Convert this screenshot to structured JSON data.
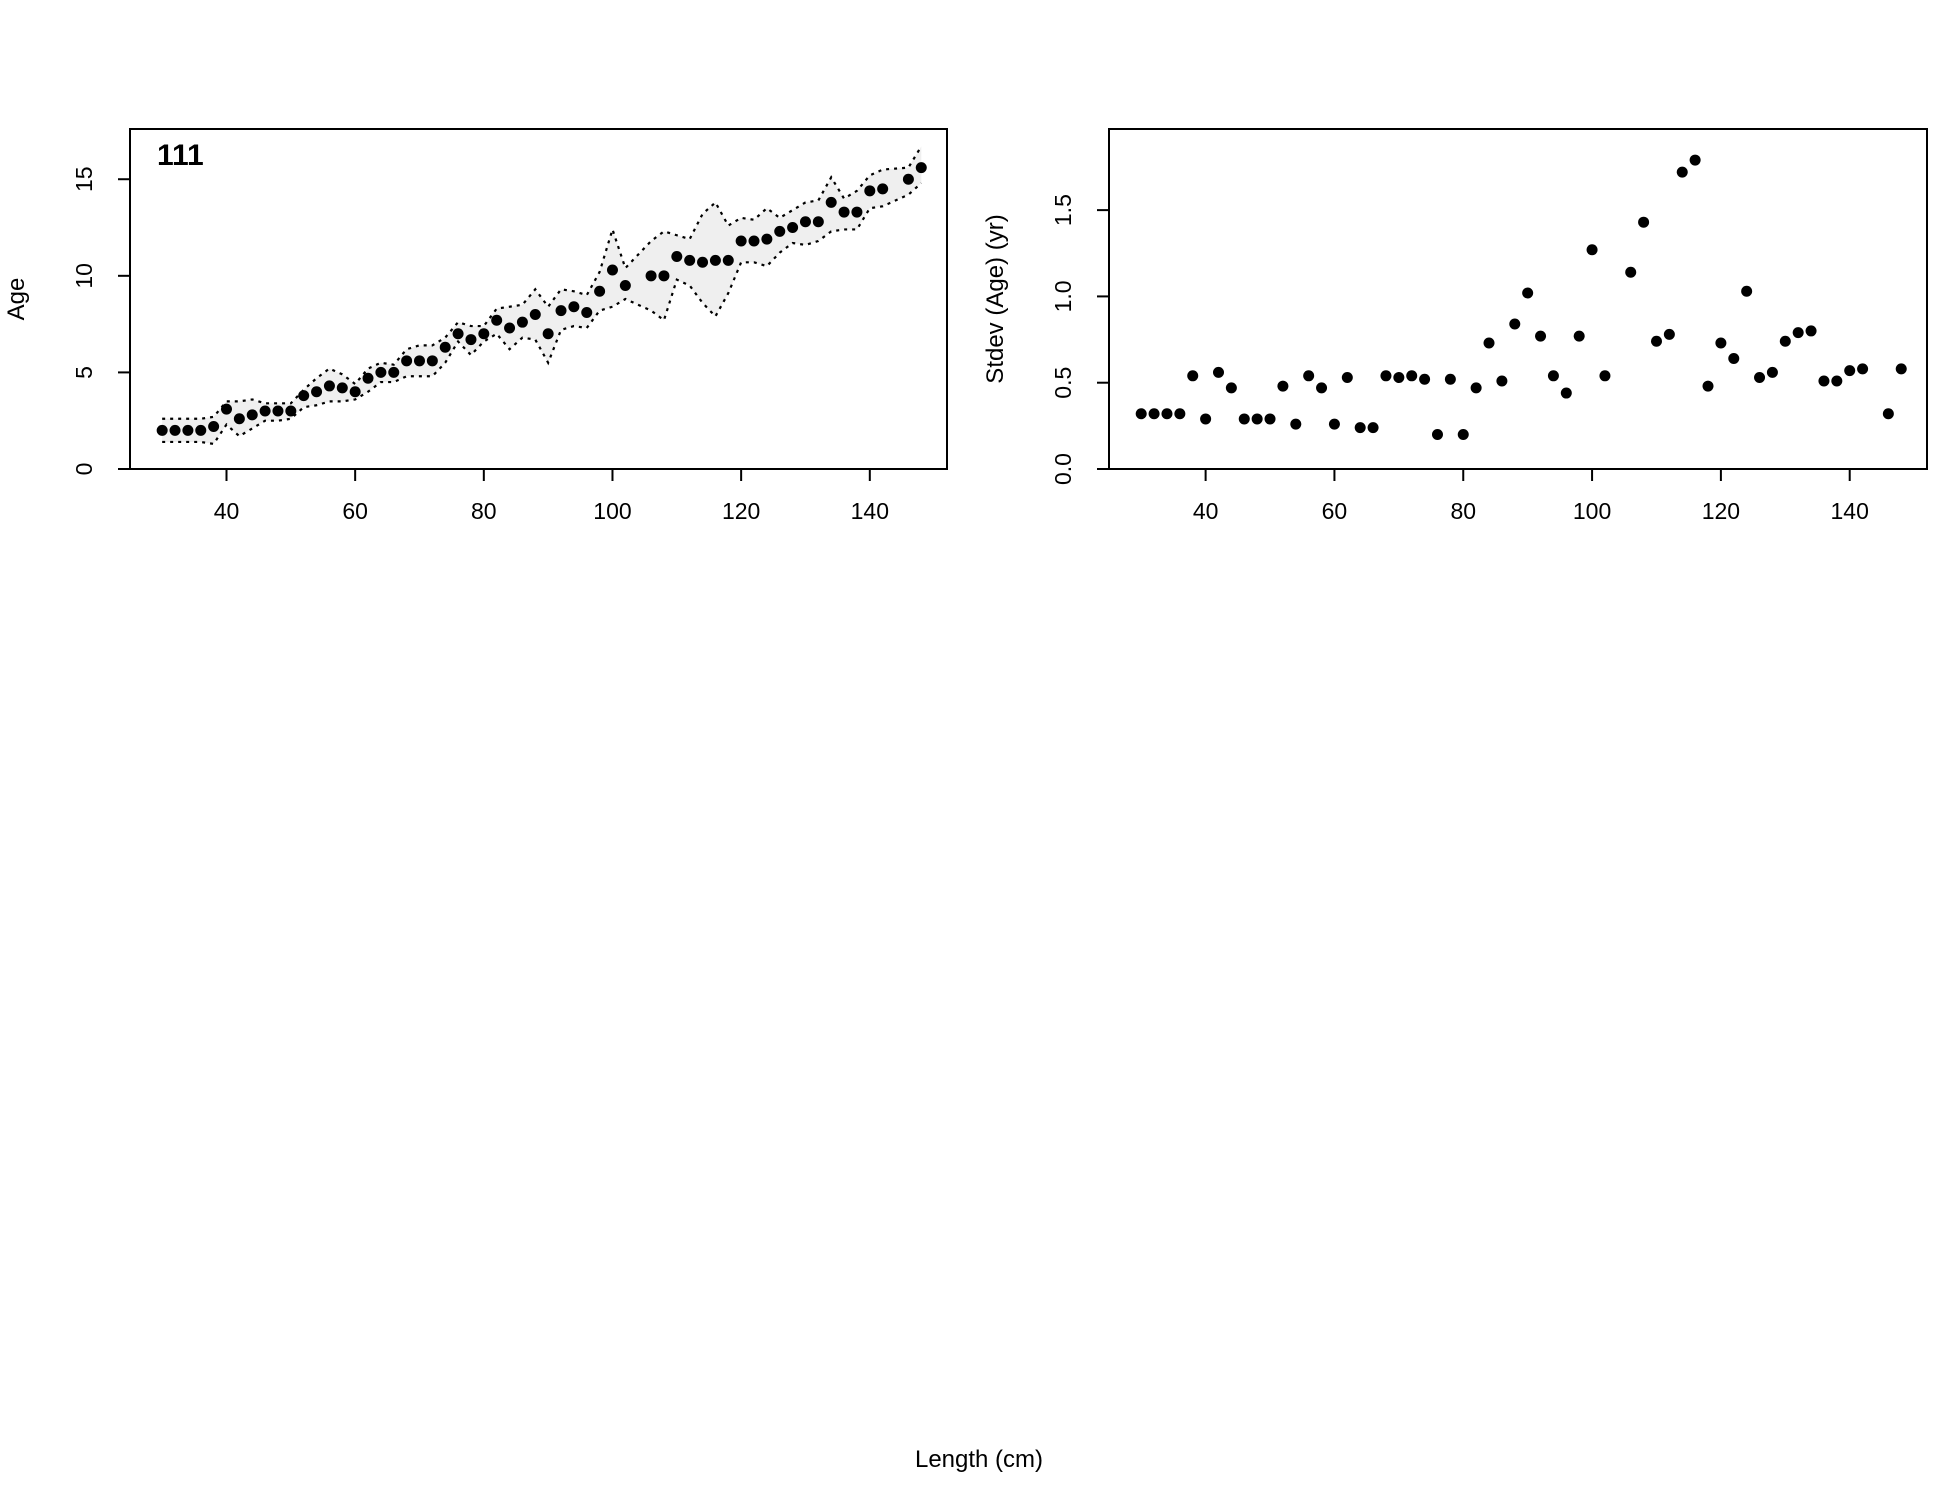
{
  "figure": {
    "xlabel": "Length (cm)"
  },
  "chart_data": [
    {
      "type": "scatter",
      "panel_label": "111",
      "xlabel": "Length (cm)",
      "ylabel": "Age",
      "xlim": [
        25,
        152
      ],
      "ylim": [
        0,
        17.6
      ],
      "xticks": [
        "40",
        "60",
        "80",
        "100",
        "120",
        "140"
      ],
      "yticks": [
        "0",
        "5",
        "10",
        "15"
      ],
      "grid": false,
      "legend": "none",
      "band": "dotted upper and lower bounds with light grey fill",
      "x": [
        30,
        32,
        34,
        36,
        38,
        40,
        42,
        44,
        46,
        48,
        50,
        52,
        54,
        56,
        58,
        60,
        62,
        64,
        66,
        68,
        70,
        72,
        74,
        76,
        78,
        80,
        82,
        84,
        86,
        88,
        90,
        92,
        94,
        96,
        98,
        100,
        102,
        106,
        108,
        110,
        112,
        114,
        116,
        118,
        120,
        122,
        124,
        126,
        128,
        130,
        132,
        134,
        136,
        138,
        140,
        142,
        146,
        148
      ],
      "y": [
        2.0,
        2.0,
        2.0,
        2.0,
        2.2,
        3.1,
        2.6,
        2.8,
        3.0,
        3.0,
        3.0,
        3.8,
        4.0,
        4.3,
        4.2,
        4.0,
        4.7,
        5.0,
        5.0,
        5.6,
        5.6,
        5.6,
        6.3,
        7.0,
        6.7,
        7.0,
        7.7,
        7.3,
        7.6,
        8.0,
        7.0,
        8.2,
        8.4,
        8.1,
        9.2,
        10.3,
        9.5,
        10.0,
        10.0,
        11.0,
        10.8,
        10.7,
        10.8,
        10.8,
        11.8,
        11.8,
        11.9,
        12.3,
        12.5,
        12.8,
        12.8,
        13.8,
        13.3,
        13.3,
        14.4,
        14.5,
        15.0,
        15.6
      ],
      "upper": [
        2.6,
        2.6,
        2.6,
        2.6,
        2.7,
        3.5,
        3.5,
        3.6,
        3.4,
        3.4,
        3.4,
        4.1,
        4.7,
        5.2,
        4.9,
        4.4,
        5.2,
        5.5,
        5.4,
        6.2,
        6.4,
        6.4,
        6.8,
        7.6,
        7.4,
        7.4,
        8.3,
        8.4,
        8.5,
        9.3,
        8.4,
        9.3,
        9.2,
        9.0,
        10.2,
        12.4,
        10.4,
        11.8,
        12.3,
        12.1,
        11.9,
        13.2,
        13.8,
        12.6,
        13.0,
        12.9,
        13.5,
        13.0,
        13.4,
        13.8,
        13.9,
        15.1,
        14.0,
        14.4,
        15.2,
        15.5,
        15.6,
        16.7
      ],
      "lower": [
        1.4,
        1.4,
        1.4,
        1.4,
        1.3,
        2.3,
        1.7,
        2.1,
        2.5,
        2.5,
        2.6,
        3.2,
        3.3,
        3.5,
        3.5,
        3.6,
        4.0,
        4.5,
        4.5,
        4.8,
        4.8,
        4.8,
        5.5,
        6.6,
        5.9,
        6.6,
        7.0,
        6.2,
        6.8,
        6.7,
        5.5,
        7.2,
        7.4,
        7.3,
        8.2,
        8.4,
        8.8,
        8.2,
        7.7,
        9.8,
        9.5,
        8.6,
        7.9,
        9.1,
        10.7,
        10.7,
        10.5,
        11.2,
        11.7,
        11.6,
        11.8,
        12.3,
        12.4,
        12.4,
        13.5,
        13.6,
        14.2,
        14.8
      ]
    },
    {
      "type": "scatter",
      "xlabel": "Length (cm)",
      "ylabel": "Stdev (Age) (yr)",
      "xlim": [
        25,
        152
      ],
      "ylim": [
        0,
        1.97
      ],
      "xticks": [
        "40",
        "60",
        "80",
        "100",
        "120",
        "140"
      ],
      "yticks": [
        "0.0",
        "0.5",
        "1.0",
        "1.5"
      ],
      "grid": false,
      "legend": "none",
      "x": [
        30,
        32,
        34,
        36,
        38,
        40,
        42,
        44,
        46,
        48,
        50,
        52,
        54,
        56,
        58,
        60,
        62,
        64,
        66,
        68,
        70,
        72,
        74,
        76,
        78,
        80,
        82,
        84,
        86,
        88,
        90,
        92,
        94,
        96,
        98,
        100,
        102,
        106,
        108,
        110,
        112,
        114,
        116,
        118,
        120,
        122,
        124,
        126,
        128,
        130,
        132,
        134,
        136,
        138,
        140,
        142,
        146,
        148
      ],
      "y": [
        0.32,
        0.32,
        0.32,
        0.32,
        0.54,
        0.29,
        0.56,
        0.47,
        0.29,
        0.29,
        0.29,
        0.48,
        0.26,
        0.54,
        0.47,
        0.26,
        0.53,
        0.24,
        0.24,
        0.54,
        0.53,
        0.54,
        0.52,
        0.2,
        0.52,
        0.2,
        0.47,
        0.73,
        0.51,
        0.84,
        1.02,
        0.77,
        0.54,
        0.44,
        0.77,
        1.27,
        0.54,
        1.14,
        1.43,
        0.74,
        0.78,
        1.72,
        1.79,
        0.48,
        0.73,
        0.64,
        1.03,
        0.53,
        0.56,
        0.74,
        0.79,
        0.8,
        0.51,
        0.51,
        0.57,
        0.58,
        0.32,
        0.58
      ]
    }
  ]
}
